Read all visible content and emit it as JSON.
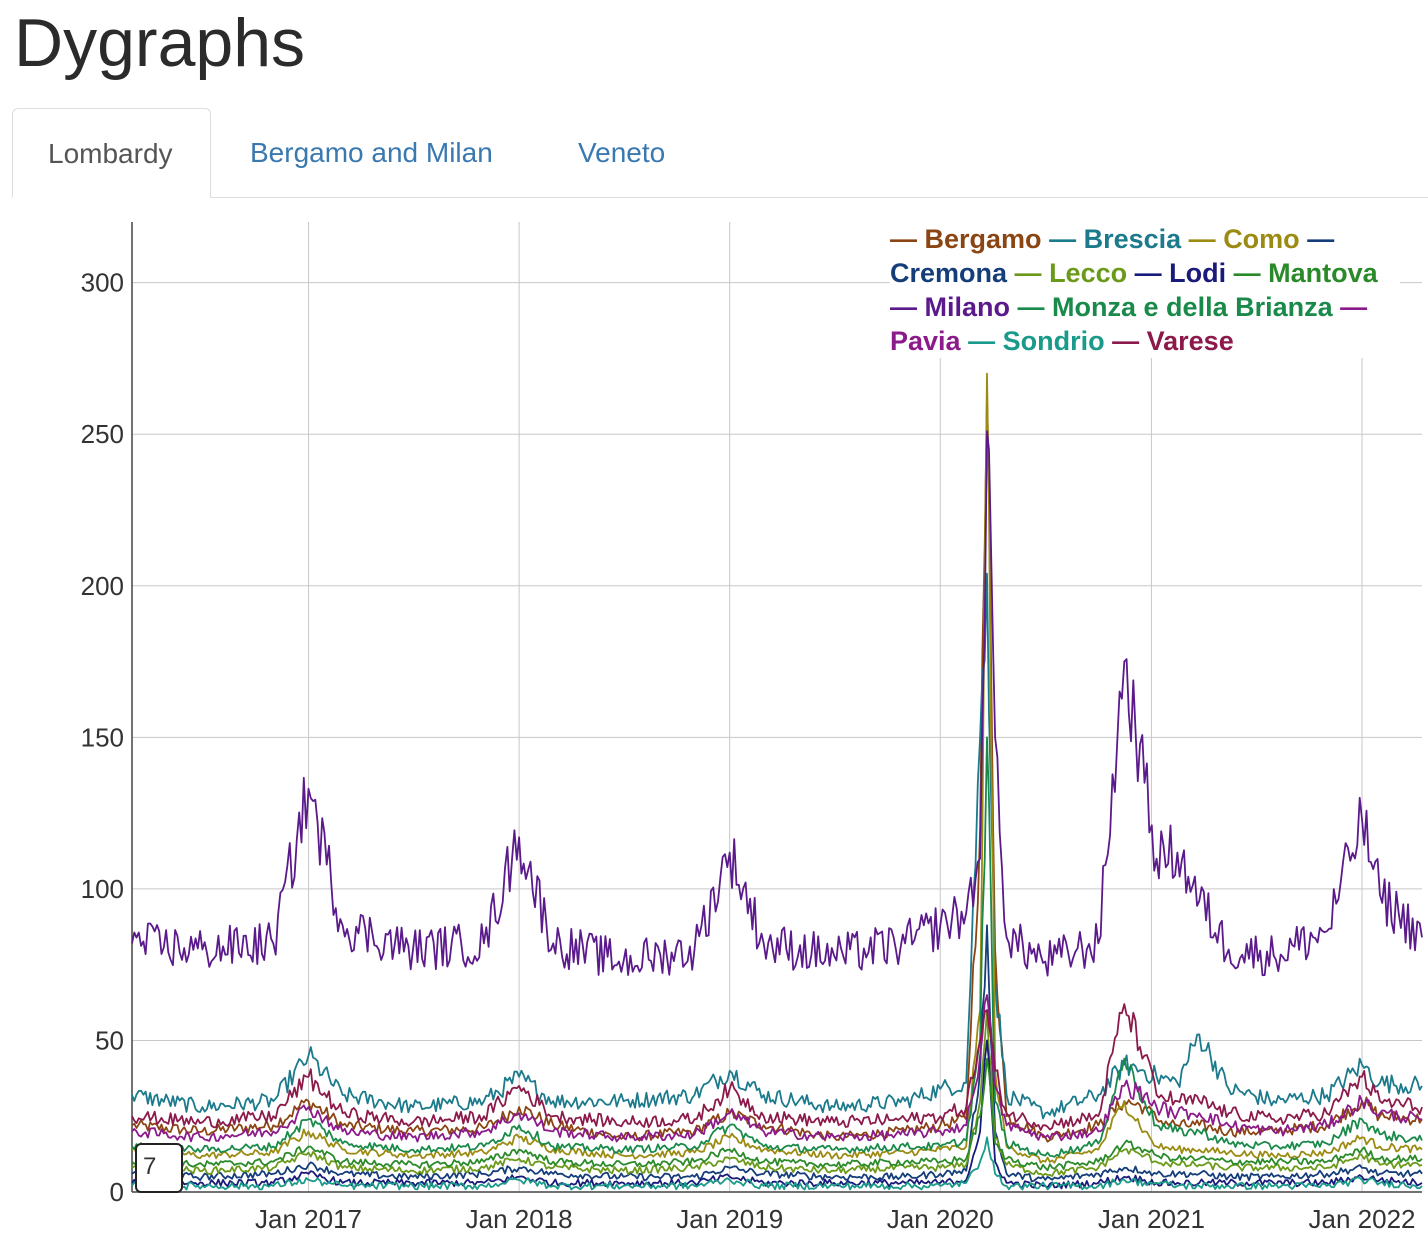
{
  "page": {
    "title": "Dygraphs"
  },
  "tabs": [
    {
      "label": "Lombardy",
      "active": true
    },
    {
      "label": "Bergamo and Milan",
      "active": false
    },
    {
      "label": "Veneto",
      "active": false
    }
  ],
  "roller": {
    "value": "7"
  },
  "chart_data": {
    "type": "line",
    "title": "",
    "xlabel": "",
    "ylabel": "",
    "xlim": [
      "2016-03-01",
      "2022-04-15"
    ],
    "ylim": [
      0,
      320
    ],
    "x_ticks": [
      "Jan 2017",
      "Jan 2018",
      "Jan 2019",
      "Jan 2020",
      "Jan 2021",
      "Jan 2022"
    ],
    "y_ticks": [
      0,
      50,
      100,
      150,
      200,
      250,
      300
    ],
    "grid": true,
    "legend_position": "top-right",
    "rolling_period": 7,
    "x": [
      "2016-03-01",
      "2016-07-01",
      "2016-11-01",
      "2017-01-01",
      "2017-03-01",
      "2017-07-01",
      "2017-11-01",
      "2018-01-01",
      "2018-03-01",
      "2018-07-01",
      "2018-11-01",
      "2019-01-01",
      "2019-03-01",
      "2019-07-01",
      "2019-11-01",
      "2020-01-01",
      "2020-02-15",
      "2020-03-10",
      "2020-03-22",
      "2020-04-05",
      "2020-04-25",
      "2020-07-01",
      "2020-10-01",
      "2020-11-15",
      "2020-12-20",
      "2021-01-10",
      "2021-02-15",
      "2021-03-25",
      "2021-05-15",
      "2021-08-01",
      "2021-11-01",
      "2022-01-01",
      "2022-02-01",
      "2022-04-15"
    ],
    "series": [
      {
        "name": "Bergamo",
        "color": "#8b4513",
        "values": [
          22,
          20,
          22,
          30,
          22,
          20,
          21,
          28,
          22,
          18,
          20,
          26,
          22,
          18,
          20,
          22,
          24,
          120,
          264,
          80,
          25,
          18,
          22,
          30,
          28,
          24,
          22,
          22,
          20,
          20,
          22,
          30,
          25,
          24
        ]
      },
      {
        "name": "Brescia",
        "color": "#1b7a8c",
        "values": [
          32,
          28,
          30,
          45,
          32,
          28,
          30,
          38,
          30,
          30,
          32,
          40,
          32,
          28,
          30,
          34,
          36,
          150,
          204,
          70,
          32,
          26,
          32,
          42,
          40,
          38,
          36,
          52,
          34,
          30,
          32,
          42,
          36,
          35
        ]
      },
      {
        "name": "Como",
        "color": "#9c8b12",
        "values": [
          14,
          12,
          13,
          20,
          14,
          12,
          13,
          18,
          14,
          12,
          13,
          18,
          14,
          12,
          13,
          14,
          15,
          60,
          270,
          40,
          15,
          10,
          14,
          30,
          20,
          15,
          14,
          14,
          13,
          12,
          13,
          18,
          15,
          14
        ]
      },
      {
        "name": "Cremona",
        "color": "#143d7a",
        "values": [
          6,
          5,
          6,
          9,
          6,
          5,
          6,
          8,
          6,
          5,
          5,
          8,
          6,
          5,
          5,
          6,
          7,
          40,
          88,
          20,
          6,
          4,
          6,
          8,
          7,
          6,
          6,
          6,
          5,
          5,
          6,
          8,
          6,
          6
        ]
      },
      {
        "name": "Lecco",
        "color": "#6b9a1a",
        "values": [
          8,
          7,
          8,
          13,
          8,
          7,
          8,
          11,
          8,
          7,
          8,
          11,
          8,
          7,
          8,
          8,
          9,
          30,
          60,
          18,
          9,
          6,
          8,
          14,
          12,
          10,
          9,
          9,
          8,
          8,
          8,
          12,
          9,
          9
        ]
      },
      {
        "name": "Lodi",
        "color": "#1a1a7a",
        "values": [
          3,
          3,
          3,
          6,
          3,
          3,
          3,
          5,
          3,
          3,
          3,
          5,
          3,
          3,
          3,
          3,
          4,
          20,
          50,
          10,
          3,
          2,
          3,
          5,
          4,
          3,
          3,
          3,
          3,
          3,
          3,
          5,
          4,
          3
        ]
      },
      {
        "name": "Mantova",
        "color": "#2a8a2a",
        "values": [
          10,
          9,
          10,
          15,
          10,
          9,
          10,
          14,
          10,
          9,
          10,
          14,
          10,
          9,
          10,
          10,
          11,
          25,
          44,
          16,
          11,
          8,
          10,
          16,
          14,
          12,
          11,
          11,
          10,
          10,
          10,
          14,
          11,
          11
        ]
      },
      {
        "name": "Milano",
        "color": "#5b1a8b",
        "values": [
          82,
          80,
          82,
          133,
          88,
          80,
          82,
          117,
          82,
          76,
          80,
          112,
          82,
          78,
          82,
          88,
          92,
          110,
          251,
          150,
          84,
          76,
          82,
          175,
          135,
          110,
          112,
          96,
          80,
          78,
          86,
          123,
          98,
          84
        ]
      },
      {
        "name": "Monza e della Brianza",
        "color": "#1a8a4a",
        "values": [
          15,
          14,
          15,
          24,
          16,
          14,
          15,
          22,
          15,
          14,
          15,
          22,
          15,
          14,
          15,
          15,
          17,
          50,
          150,
          30,
          16,
          12,
          16,
          44,
          30,
          22,
          20,
          20,
          16,
          15,
          16,
          24,
          19,
          17
        ]
      },
      {
        "name": "Pavia",
        "color": "#8b1a8b",
        "values": [
          20,
          18,
          20,
          28,
          20,
          18,
          20,
          26,
          20,
          18,
          19,
          26,
          20,
          18,
          19,
          20,
          22,
          45,
          65,
          35,
          22,
          18,
          20,
          35,
          32,
          28,
          26,
          26,
          22,
          20,
          22,
          30,
          26,
          24
        ]
      },
      {
        "name": "Sondrio",
        "color": "#1a9a8a",
        "values": [
          2,
          2,
          2,
          4,
          2,
          2,
          2,
          4,
          2,
          2,
          2,
          4,
          2,
          2,
          2,
          2,
          3,
          10,
          18,
          6,
          2,
          2,
          2,
          4,
          3,
          3,
          2,
          2,
          2,
          2,
          2,
          4,
          3,
          2
        ]
      },
      {
        "name": "Varese",
        "color": "#8b1a4a",
        "values": [
          25,
          23,
          25,
          38,
          26,
          23,
          25,
          35,
          25,
          23,
          24,
          34,
          25,
          23,
          24,
          25,
          28,
          50,
          60,
          40,
          26,
          22,
          25,
          62,
          45,
          32,
          30,
          30,
          26,
          24,
          26,
          38,
          30,
          28
        ]
      }
    ]
  }
}
